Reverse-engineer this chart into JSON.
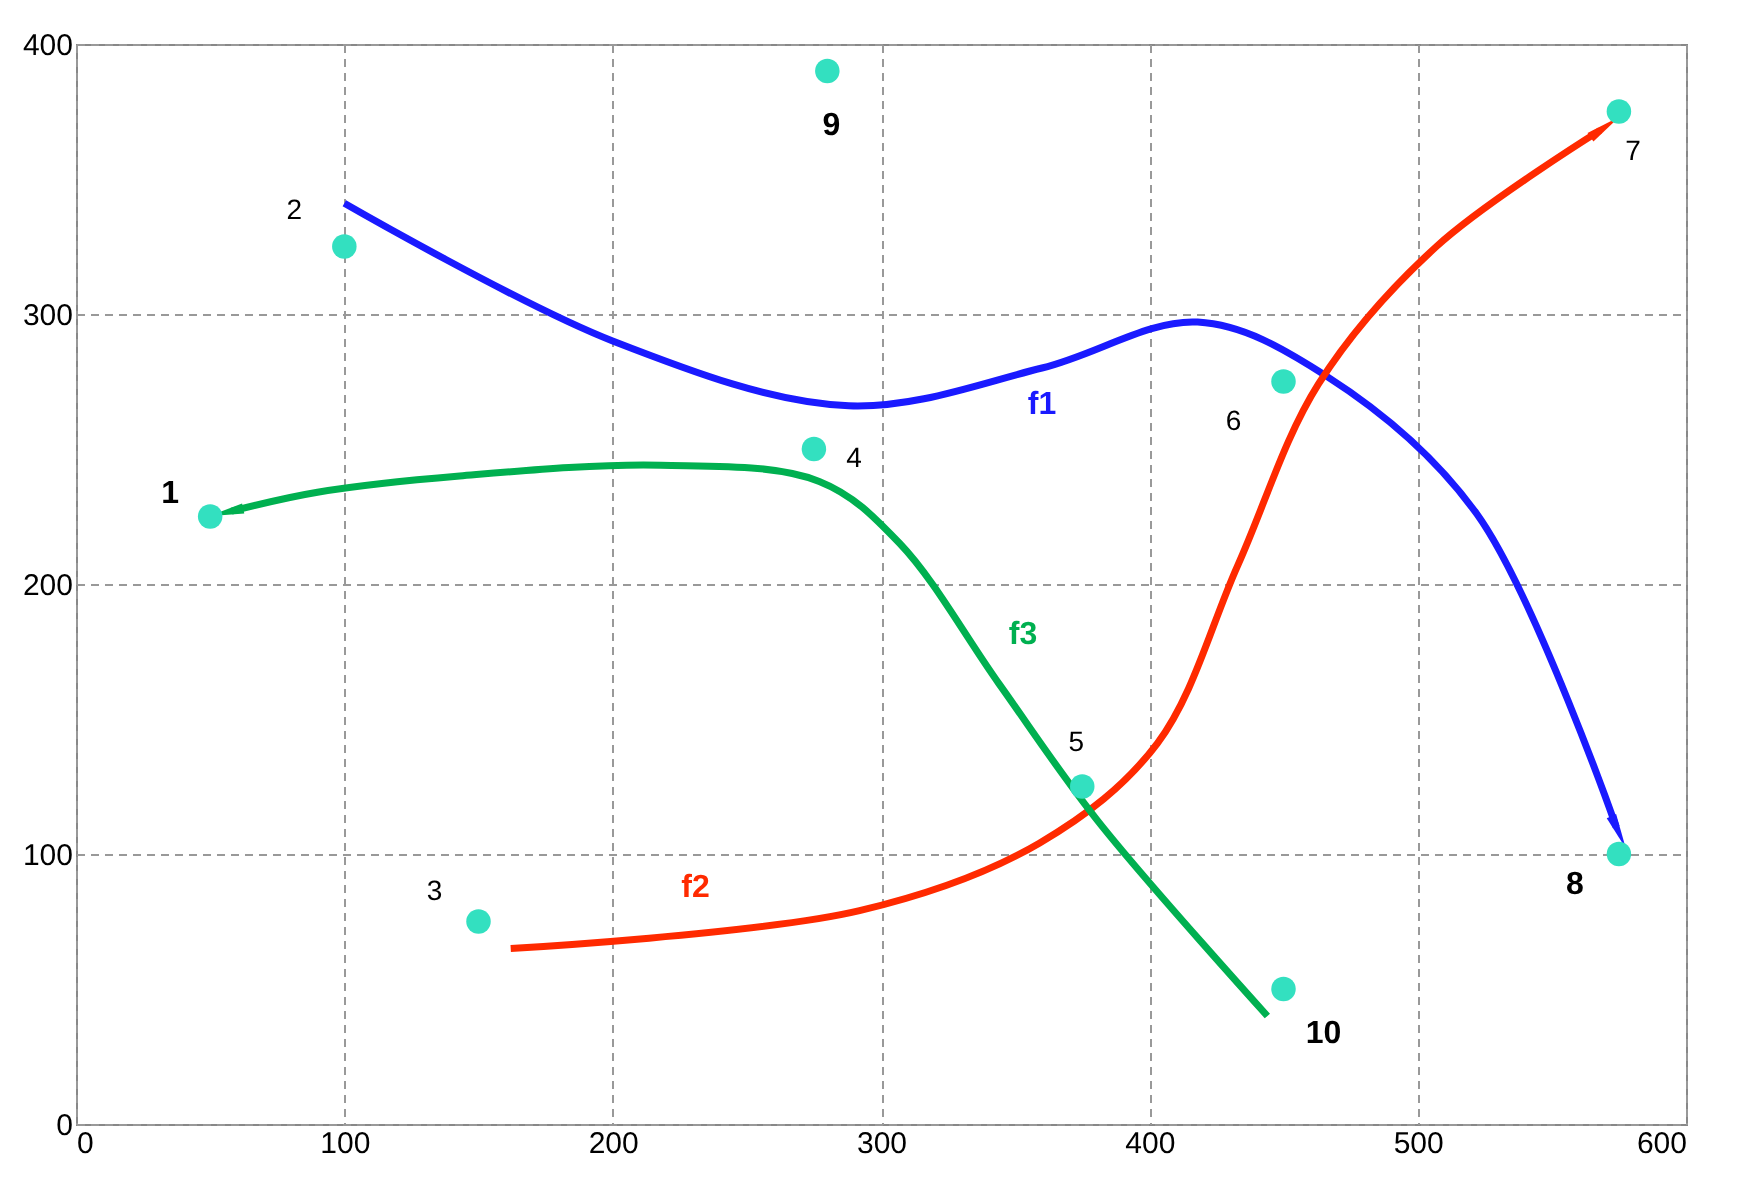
{
  "chart_data": {
    "type": "scatter",
    "xlim": [
      0,
      600
    ],
    "ylim": [
      0,
      400
    ],
    "xticks": [
      0,
      100,
      200,
      300,
      400,
      500,
      600
    ],
    "yticks": [
      0,
      100,
      200,
      300,
      400
    ],
    "grid": true,
    "series": [
      {
        "marker": "circle",
        "color": "#33e0c0",
        "x": [
          50,
          100,
          150,
          275,
          375,
          450,
          575,
          575,
          280,
          450
        ],
        "values": [
          225,
          325,
          75,
          250,
          125,
          275,
          375,
          100,
          390,
          50
        ]
      },
      {
        "type": "line",
        "marker": "none",
        "name": "f1",
        "color": "#1a1aff",
        "x": [
          100,
          200,
          288,
          360,
          418,
          466,
          522,
          574
        ],
        "values": [
          341,
          290,
          266,
          280,
          297,
          277,
          226,
          110
        ]
      },
      {
        "type": "line",
        "marker": "none",
        "name": "f2",
        "color": "#ff2a00",
        "x": [
          162,
          292,
          359,
          403,
          433,
          463,
          507,
          568
        ],
        "values": [
          65,
          79,
          104,
          141,
          207,
          274,
          325,
          368
        ]
      },
      {
        "type": "line",
        "marker": "none",
        "name": "f3",
        "color": "#00b050",
        "x": [
          444,
          381,
          344,
          307,
          277,
          218,
          143,
          90,
          58
        ],
        "values": [
          40,
          112,
          163,
          215,
          238,
          244,
          240,
          234,
          227
        ]
      }
    ],
    "annotations": [
      {
        "text": "1",
        "x": 50,
        "y": 225
      },
      {
        "text": "2",
        "x": 100,
        "y": 325
      },
      {
        "text": "3",
        "x": 150,
        "y": 75
      },
      {
        "text": "4",
        "x": 275,
        "y": 250
      },
      {
        "text": "5",
        "x": 375,
        "y": 125
      },
      {
        "text": "6",
        "x": 450,
        "y": 275
      },
      {
        "text": "7",
        "x": 575,
        "y": 375
      },
      {
        "text": "8",
        "x": 575,
        "y": 100
      },
      {
        "text": "9",
        "x": 280,
        "y": 390
      },
      {
        "text": "10",
        "x": 450,
        "y": 50
      }
    ]
  }
}
